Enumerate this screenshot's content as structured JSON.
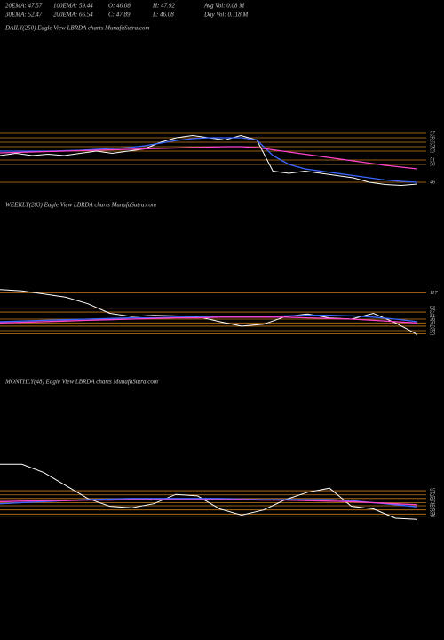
{
  "header": [
    "20EMA: 47.57",
    "100EMA: 59.44",
    "O: 46.08",
    "H: 47.92",
    "Avg Vol: 0.08  M",
    "30EMA: 52.47",
    "200EMA: 66.54",
    "C: 47.89",
    "L: 46.08",
    "Day Vol: 0.118  M"
  ],
  "chart_data": [
    {
      "type": "line",
      "title": "DAILY(250) Eagle  View  LBRDA charts MunafaSutra.com",
      "ylim": [
        44,
        58
      ],
      "yticks": [
        57,
        56,
        55,
        54,
        53,
        51,
        50,
        46
      ],
      "grid": true,
      "grid_color": "#c87a1a",
      "series": [
        {
          "color": "#ffffff",
          "values": [
            52,
            52.5,
            52,
            52.3,
            52,
            52.5,
            53,
            52.5,
            53,
            53.5,
            55,
            56,
            56.5,
            56,
            55.5,
            56.5,
            55.5,
            48.5,
            48,
            48.5,
            48,
            47.5,
            47,
            46,
            45.5,
            45.3,
            45.6
          ]
        },
        {
          "color": "#3a66ff",
          "values": [
            53,
            53,
            53,
            53,
            53.1,
            53.2,
            53.4,
            53.6,
            53.8,
            54.2,
            54.8,
            55.4,
            55.8,
            56,
            56,
            56,
            55.5,
            52,
            50,
            49,
            48.5,
            48,
            47.5,
            47,
            46.5,
            46.2,
            46
          ]
        },
        {
          "color": "#ff44cc",
          "values": [
            52.6,
            52.7,
            52.8,
            52.9,
            53,
            53.1,
            53.2,
            53.3,
            53.4,
            53.5,
            53.6,
            53.7,
            53.8,
            53.9,
            54,
            54,
            53.8,
            53.3,
            52.8,
            52.3,
            51.8,
            51.3,
            50.8,
            50.3,
            49.8,
            49.4,
            49.0
          ]
        }
      ]
    },
    {
      "type": "line",
      "title": "WEEKLY(283) Eagle  View  LBRDA charts MunafaSutra.com",
      "ylim": [
        40,
        130
      ],
      "yticks": [
        117,
        93,
        87,
        81,
        76,
        70,
        65,
        58,
        53
      ],
      "grid": true,
      "grid_color": "#c87a1a",
      "series": [
        {
          "color": "#ffffff",
          "values": [
            122,
            120,
            115,
            110,
            100,
            85,
            80,
            82,
            81,
            80,
            72,
            65,
            68,
            80,
            84,
            78,
            76,
            85,
            70,
            52
          ]
        },
        {
          "color": "#3a66ff",
          "values": [
            72,
            73,
            74,
            75,
            76,
            77,
            78,
            78,
            79,
            79,
            80,
            80,
            80,
            81,
            82,
            82,
            81,
            79,
            76,
            72
          ]
        },
        {
          "color": "#ff44cc",
          "values": [
            70,
            71,
            72,
            73,
            74,
            75,
            76,
            77,
            78,
            78,
            79,
            79,
            79,
            79,
            78,
            77,
            76,
            74,
            72,
            70
          ]
        }
      ]
    },
    {
      "type": "line",
      "title": "MONTHLY(48) Eagle  View  LBRDA charts MunafaSutra.com",
      "ylim": [
        30,
        150
      ],
      "yticks": [
        95,
        87,
        80,
        72,
        66,
        58,
        50,
        46
      ],
      "grid": true,
      "grid_color": "#c87a1a",
      "series": [
        {
          "color": "#ffffff",
          "values": [
            146,
            146,
            130,
            105,
            80,
            65,
            62,
            70,
            88,
            85,
            60,
            48,
            58,
            78,
            92,
            100,
            65,
            60,
            42,
            40
          ]
        },
        {
          "color": "#3a66ff",
          "values": [
            70,
            72,
            74,
            76,
            78,
            79,
            80,
            80,
            80,
            80,
            80,
            79,
            78,
            78,
            78,
            78,
            76,
            72,
            68,
            64
          ]
        },
        {
          "color": "#ff44cc",
          "values": [
            74,
            75,
            76,
            76,
            77,
            77,
            78,
            78,
            78,
            78,
            78,
            78,
            77,
            77,
            76,
            75,
            74,
            72,
            70,
            68
          ]
        }
      ]
    }
  ]
}
